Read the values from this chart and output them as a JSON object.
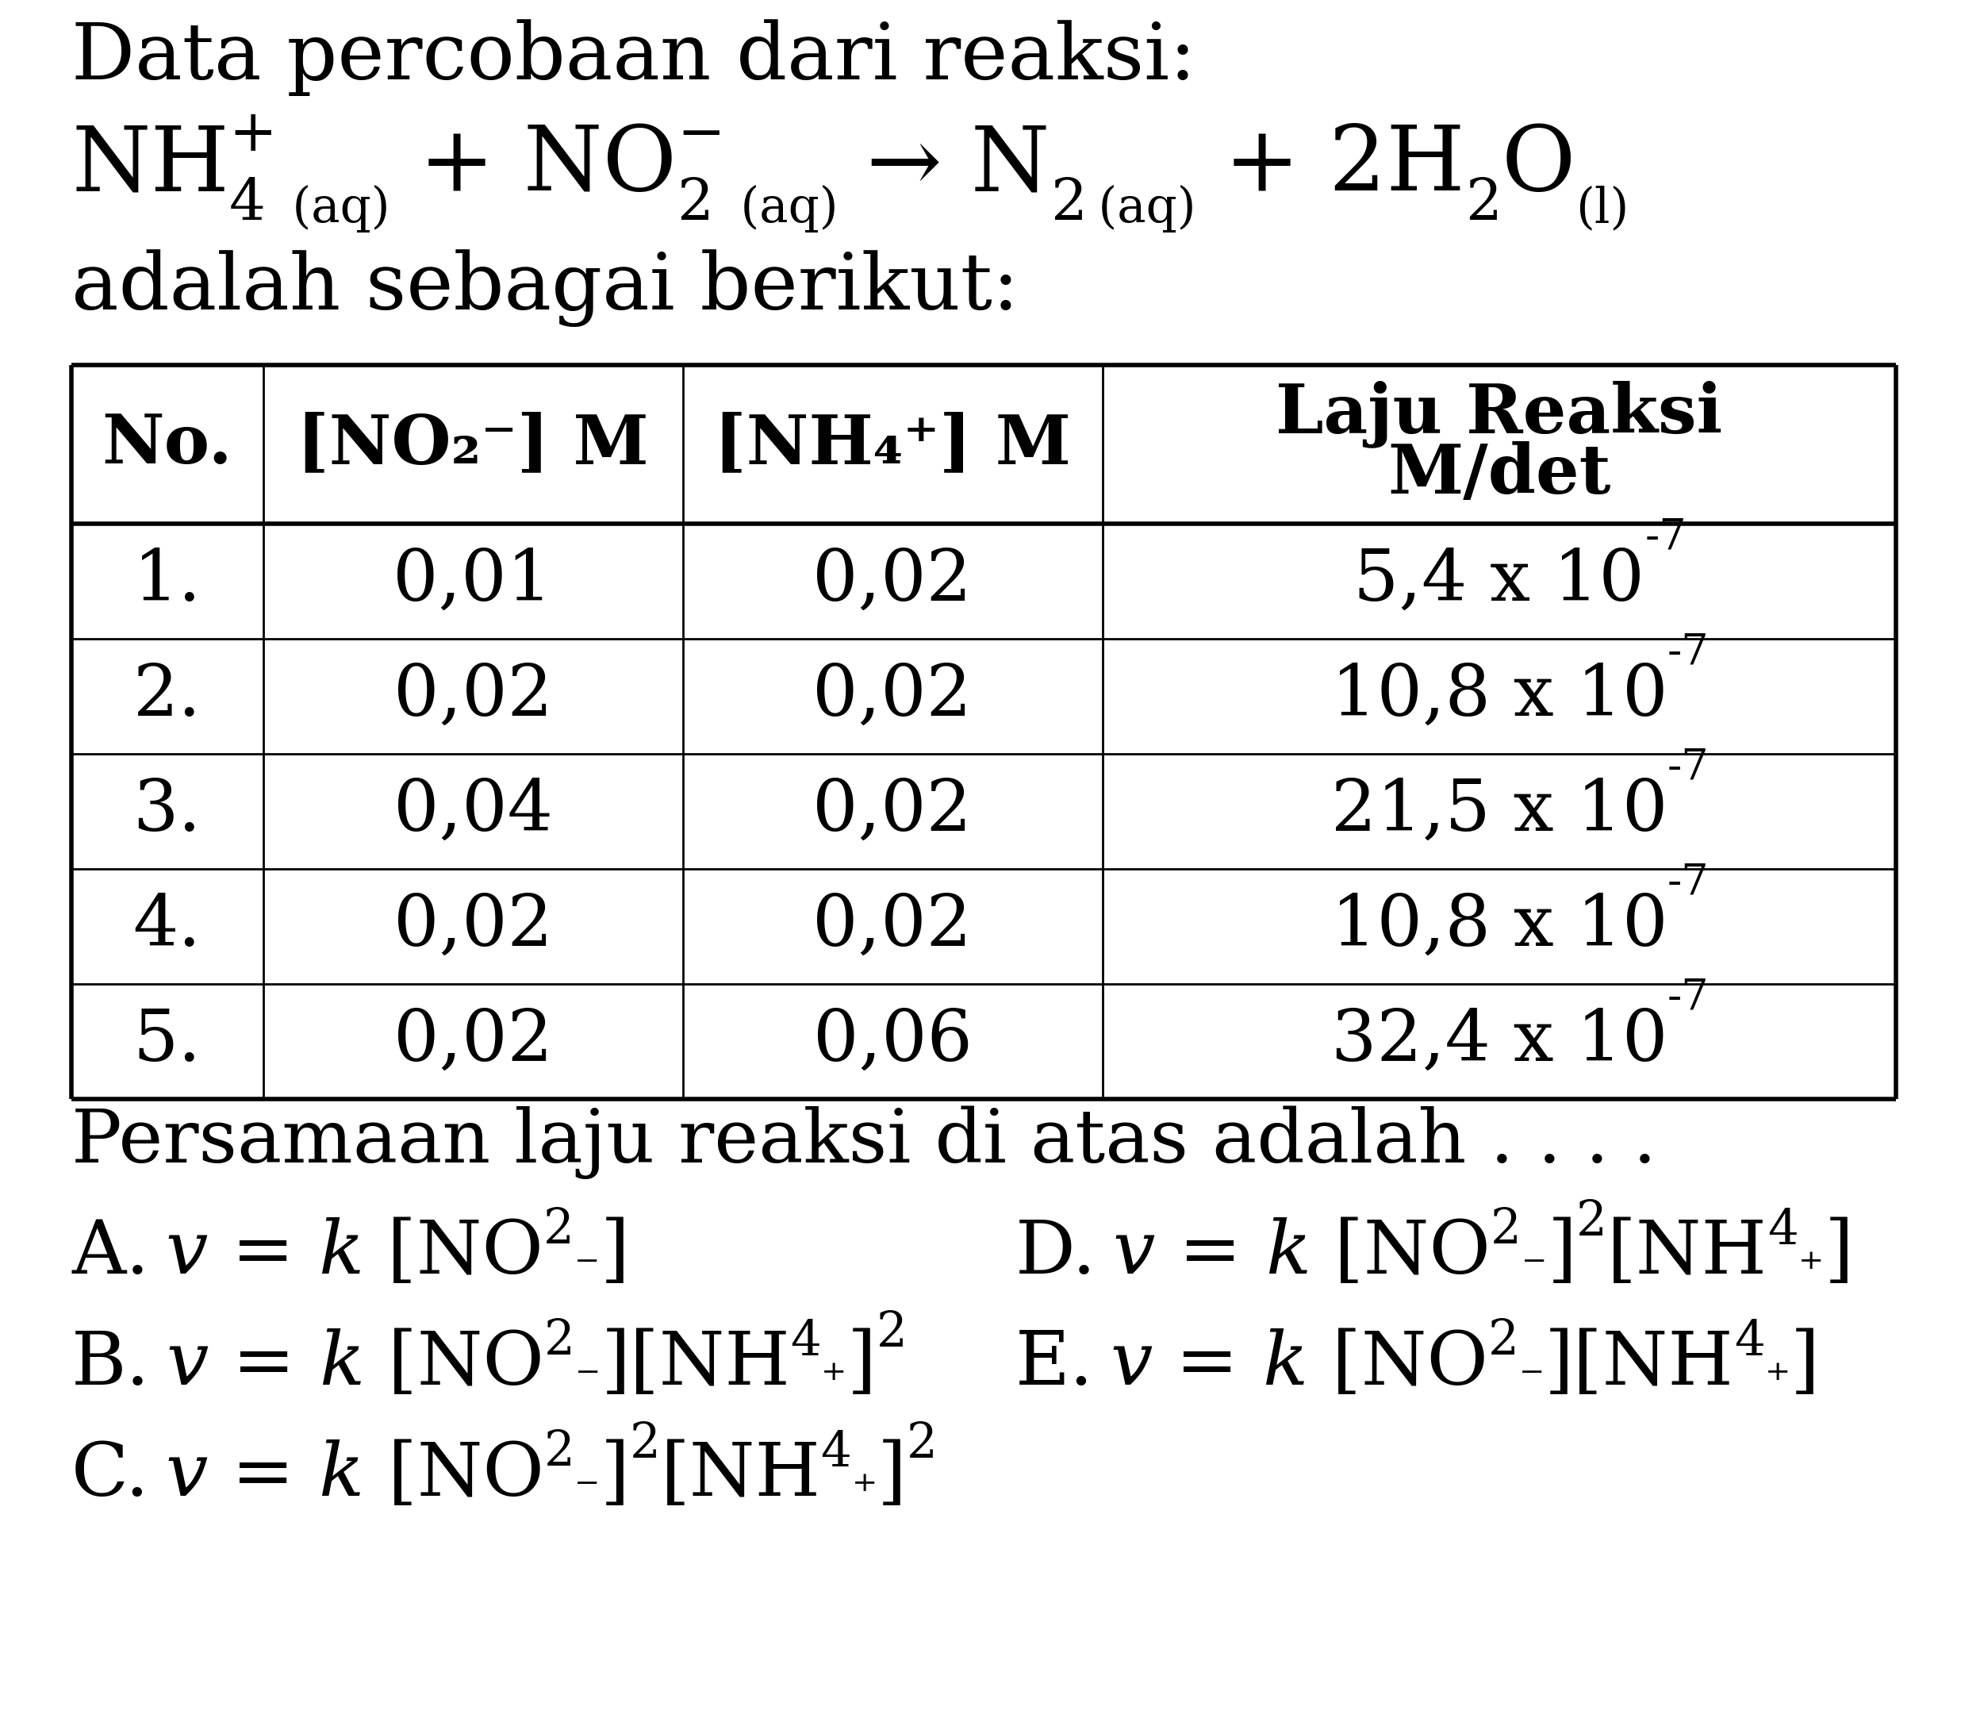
{
  "bg_color": "#ffffff",
  "text_color": "#000000",
  "title1": "Data percobaan dari reaksi:",
  "title3": "adalah sebagai berikut:",
  "question": "Persamaan laju reaksi di atas adalah . . . .",
  "table_data": [
    [
      "1.",
      "0,01",
      "0,02",
      "5,4 x 10"
    ],
    [
      "2.",
      "0,02",
      "0,02",
      "10,8 x 10"
    ],
    [
      "3.",
      "0,04",
      "0,02",
      "21,5 x 10"
    ],
    [
      "4.",
      "0,02",
      "0,02",
      "10,8 x 10"
    ],
    [
      "5.",
      "0,02",
      "0,06",
      "32,4 x 10"
    ]
  ],
  "exponents": [
    "-7",
    "-7",
    "-7",
    "-7",
    "-7"
  ],
  "lw_outer": 4.0,
  "lw_inner": 2.0
}
